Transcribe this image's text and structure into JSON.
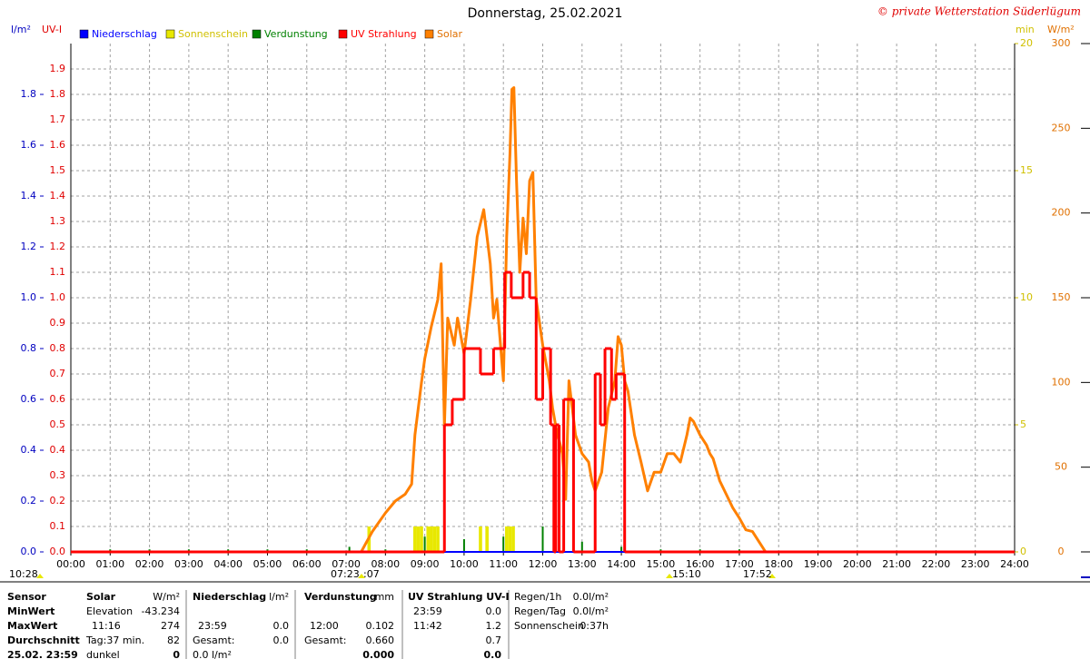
{
  "chart_data": {
    "type": "line",
    "title": "Donnerstag, 25.02.2021",
    "subtitle": "© private Wetterstation Süderlügum",
    "axis_units": {
      "left": "l/m²",
      "uv": "UV-I",
      "min": "min",
      "wm2": "W/m²"
    },
    "grid": true,
    "xlim": [
      0,
      1440
    ],
    "xticks": [
      {
        "value": 0,
        "label": "00:00"
      },
      {
        "value": 60,
        "label": "01:00"
      },
      {
        "value": 120,
        "label": "02:00"
      },
      {
        "value": 180,
        "label": "03:00"
      },
      {
        "value": 240,
        "label": "04:00"
      },
      {
        "value": 300,
        "label": "05:00"
      },
      {
        "value": 360,
        "label": "06:00"
      },
      {
        "value": 420,
        "label": "07:00"
      },
      {
        "value": 480,
        "label": "08:00"
      },
      {
        "value": 540,
        "label": "09:00"
      },
      {
        "value": 600,
        "label": "10:00"
      },
      {
        "value": 660,
        "label": "11:00"
      },
      {
        "value": 720,
        "label": "12:00"
      },
      {
        "value": 780,
        "label": "13:00"
      },
      {
        "value": 840,
        "label": "14:00"
      },
      {
        "value": 900,
        "label": "15:00"
      },
      {
        "value": 960,
        "label": "16:00"
      },
      {
        "value": 1020,
        "label": "17:00"
      },
      {
        "value": 1080,
        "label": "18:00"
      },
      {
        "value": 1140,
        "label": "19:00"
      },
      {
        "value": 1200,
        "label": "20:00"
      },
      {
        "value": 1260,
        "label": "21:00"
      },
      {
        "value": 1320,
        "label": "22:00"
      },
      {
        "value": 1380,
        "label": "23:00"
      },
      {
        "value": 1440,
        "label": "24:00"
      }
    ],
    "ylim": [
      0,
      2
    ],
    "yticks": [
      {
        "value": 0,
        "label": "0.0"
      },
      0.2,
      0.4,
      0.6,
      0.8,
      {
        "value": 1,
        "label": "1.0"
      },
      1.2,
      1.4,
      1.6,
      1.8
    ],
    "uv_ylim": [
      0,
      2
    ],
    "uv_yticks": [
      {
        "value": 0,
        "label": "0.0"
      },
      0.1,
      0.2,
      0.3,
      0.4,
      0.5,
      0.6,
      0.7,
      0.8,
      0.9,
      {
        "value": 1,
        "label": "1.0"
      },
      1.1,
      1.2,
      1.3,
      1.4,
      1.5,
      1.6,
      1.7,
      1.8,
      1.9
    ],
    "min_ylim": [
      0,
      20
    ],
    "min_yticks": [
      0,
      5,
      10,
      15,
      20
    ],
    "wm2_ylim": [
      0,
      300
    ],
    "wm2_yticks": [
      0,
      50,
      100,
      150,
      200,
      250,
      300
    ],
    "series": [
      {
        "name": "Niederschlag",
        "color": "#0000ff",
        "axis": "y",
        "kind": "line",
        "x": [
          0,
          1440
        ],
        "values": [
          0,
          0
        ]
      },
      {
        "name": "Sonnenschein",
        "color": "#e8e800",
        "axis": "min",
        "kind": "bar",
        "bar_width": 5,
        "x": [
          455,
          525,
          530,
          535,
          545,
          550,
          555,
          560,
          625,
          635,
          665,
          670,
          675
        ],
        "values": [
          1,
          1,
          1,
          1,
          1,
          1,
          1,
          1,
          1,
          1,
          1,
          1,
          1
        ]
      },
      {
        "name": "Verdunstung",
        "color": "#008000",
        "axis": "y",
        "kind": "bar",
        "bar_width": 2,
        "x": [
          60,
          120,
          180,
          240,
          300,
          360,
          425,
          480,
          540,
          600,
          660,
          720,
          780,
          840,
          900,
          960,
          1020
        ],
        "values": [
          0.01,
          0.01,
          0.01,
          0.01,
          0.01,
          0.01,
          0.02,
          0.01,
          0.06,
          0.05,
          0.06,
          0.1,
          0.04,
          0.02,
          0.01,
          0.01,
          0.01
        ]
      },
      {
        "name": "UV Strahlung",
        "color": "#ff0000",
        "axis": "uv",
        "kind": "line",
        "step": true,
        "x": [
          0,
          570,
          582,
          600,
          625,
          645,
          662,
          672,
          690,
          700,
          710,
          720,
          732,
          737,
          740,
          745,
          752,
          767,
          800,
          808,
          815,
          825,
          832,
          845,
          1440
        ],
        "values": [
          0,
          0.5,
          0.6,
          0.8,
          0.7,
          0.8,
          1.1,
          1.0,
          1.1,
          1.0,
          0.6,
          0.8,
          0.5,
          0,
          0.5,
          0,
          0.6,
          0,
          0.7,
          0.5,
          0.8,
          0.6,
          0.7,
          0,
          0
        ]
      },
      {
        "name": "Solar",
        "color": "#ff8000",
        "axis": "wm2",
        "kind": "line",
        "x": [
          443,
          450,
          460,
          480,
          495,
          510,
          520,
          525,
          535,
          540,
          550,
          560,
          565,
          570,
          575,
          585,
          590,
          600,
          610,
          620,
          630,
          640,
          645,
          650,
          660,
          665,
          670,
          673,
          676,
          680,
          685,
          690,
          695,
          700,
          705,
          710,
          720,
          730,
          735,
          740,
          750,
          755,
          760,
          770,
          780,
          790,
          795,
          800,
          810,
          820,
          830,
          835,
          840,
          845,
          850,
          860,
          870,
          880,
          890,
          900,
          910,
          920,
          930,
          940,
          945,
          950,
          960,
          970,
          975,
          980,
          990,
          1000,
          1010,
          1020,
          1030,
          1040,
          1050,
          1060
        ],
        "values": [
          0,
          5,
          12,
          23,
          30,
          34,
          40,
          69,
          100,
          114,
          133,
          149,
          170,
          74,
          138,
          122,
          138,
          117,
          149,
          186,
          202,
          170,
          138,
          149,
          101,
          186,
          235,
          273,
          274,
          219,
          165,
          197,
          176,
          219,
          224,
          149,
          122,
          101,
          85,
          74,
          58,
          31,
          101,
          69,
          58,
          53,
          42,
          36,
          47,
          85,
          101,
          127,
          122,
          101,
          95,
          69,
          53,
          36,
          47,
          47,
          58,
          58,
          53,
          69,
          79,
          77,
          69,
          63,
          58,
          55,
          42,
          34,
          26,
          20,
          13,
          12,
          6,
          0
        ]
      }
    ],
    "annotations": [
      "10:28",
      "07:23",
      ":07",
      "15:10",
      "17:52"
    ]
  },
  "table": {
    "rows": [
      [
        "Sensor",
        "Solar",
        "W/m²",
        "Niederschlag",
        "l/m²",
        "Verdunstung",
        "mm",
        "UV Strahlung UV-I",
        null,
        "Regen/1h",
        "0.0l/m²"
      ],
      [
        "MinWert",
        "Elevation",
        "-43.234",
        null,
        null,
        null,
        null,
        "23:59",
        "0.0",
        "Regen/Tag",
        "0.0l/m²"
      ],
      [
        "MaxWert",
        "11:16",
        "274",
        "23:59",
        "0.0",
        "12:00",
        "0.102",
        "11:42",
        "1.2",
        "Sonnenschein",
        "0:37h"
      ],
      [
        "Durchschnitt",
        "Tag:37 min.",
        "82",
        "Gesamt:",
        "0.0",
        "Gesamt:",
        "0.660",
        null,
        "0.7",
        null,
        null
      ],
      [
        "25.02. 23:59",
        "dunkel",
        "0",
        "0.0 l/m²",
        null,
        null,
        "0.000",
        null,
        "0.0",
        null,
        null
      ]
    ]
  }
}
